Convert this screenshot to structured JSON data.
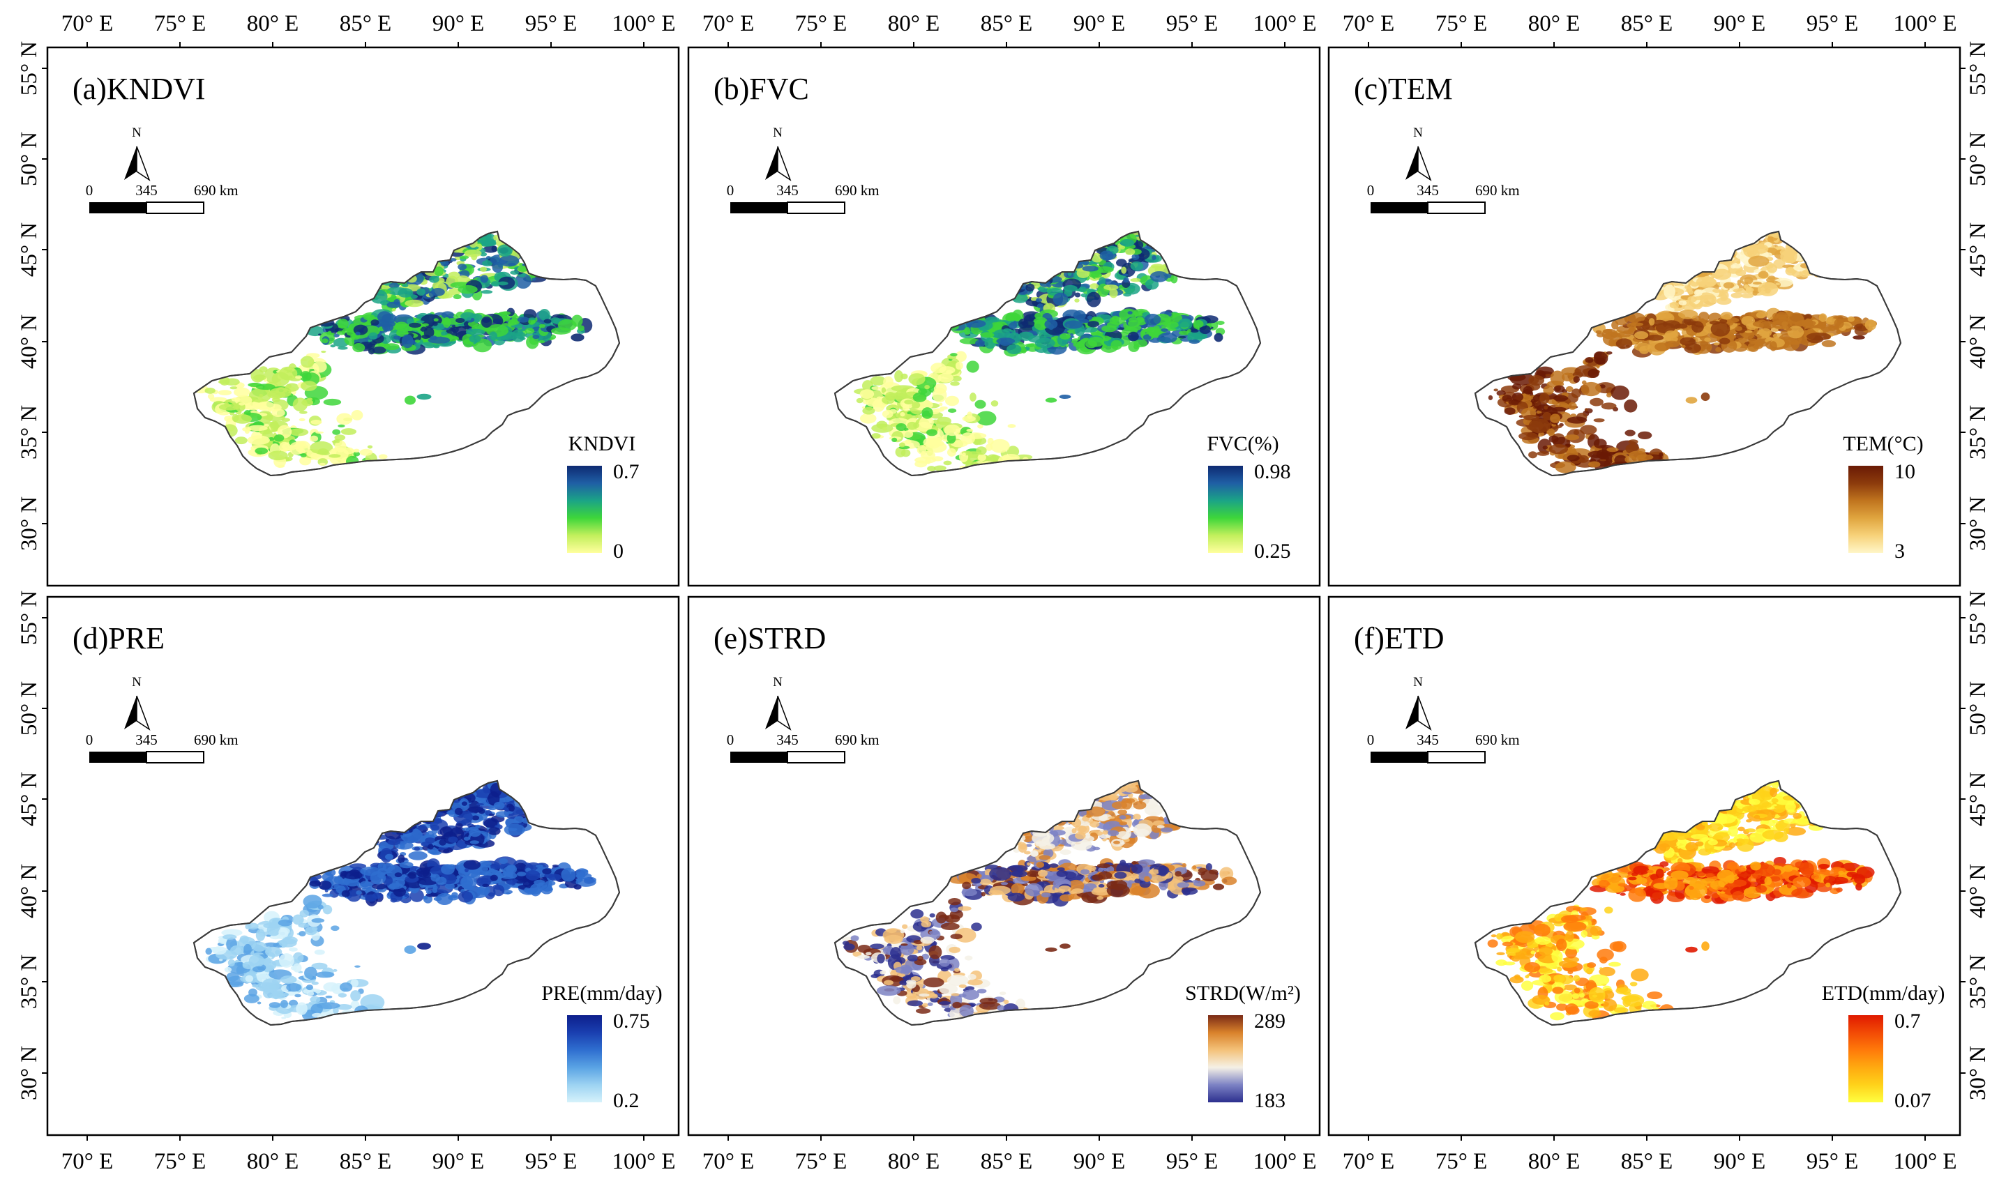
{
  "figure": {
    "lon_ticks": [
      "70° E",
      "75° E",
      "80° E",
      "85° E",
      "90° E",
      "95° E",
      "100° E"
    ],
    "lat_ticks": [
      "55° N",
      "50° N",
      "45° N",
      "40° N",
      "35° N",
      "30° N"
    ],
    "lon_values": [
      70,
      75,
      80,
      85,
      90,
      95,
      100
    ],
    "lat_values": [
      55,
      50,
      45,
      40,
      35,
      30
    ],
    "north_label": "N",
    "scale_labels": [
      "0",
      "345",
      "690 km"
    ]
  },
  "panels": [
    {
      "id": "a",
      "title": "(a)KNDVI",
      "legend_title": "KNDVI",
      "legend_max": "0.7",
      "legend_min": "0",
      "colors": [
        "#ffff9e",
        "#c2ef5c",
        "#3ed63a",
        "#1ba486",
        "#1f5fa5",
        "#0e2a72"
      ],
      "pattern": "veg"
    },
    {
      "id": "b",
      "title": "(b)FVC",
      "legend_title": "FVC(%)",
      "legend_max": "0.98",
      "legend_min": "0.25",
      "colors": [
        "#ffff9e",
        "#c2ef5c",
        "#3ed63a",
        "#1ba486",
        "#1f5fa5",
        "#0e2a72"
      ],
      "pattern": "veg"
    },
    {
      "id": "c",
      "title": "(c)TEM",
      "legend_title": "TEM(°C)",
      "legend_max": "10",
      "legend_min": "3",
      "colors": [
        "#fff6c8",
        "#f7d27a",
        "#e0a53f",
        "#c0741e",
        "#8c3b0c",
        "#6a1a05"
      ],
      "pattern": "tem"
    },
    {
      "id": "d",
      "title": "(d)PRE",
      "legend_title": "PRE(mm/day)",
      "legend_max": "0.75",
      "legend_min": "0.2",
      "colors": [
        "#d6f2fb",
        "#9dd3f2",
        "#5aa3e4",
        "#2f6fd0",
        "#1a3fb0",
        "#0d1f8c"
      ],
      "pattern": "pre"
    },
    {
      "id": "e",
      "title": "(e)STRD",
      "legend_title": "STRD(W/m²)",
      "legend_max": "289",
      "legend_min": "183",
      "colors": [
        "#2c2f8e",
        "#7c82c4",
        "#f5f1e6",
        "#f4c27a",
        "#d9822b",
        "#7a2a16"
      ],
      "pattern": "strd"
    },
    {
      "id": "f",
      "title": "(f)ETD",
      "legend_title": "ETD(mm/day)",
      "legend_max": "0.7",
      "legend_min": "0.07",
      "colors": [
        "#ffff40",
        "#ffd21a",
        "#ffaa10",
        "#ff7a0a",
        "#f24a05",
        "#e01a00"
      ],
      "pattern": "etd"
    }
  ]
}
